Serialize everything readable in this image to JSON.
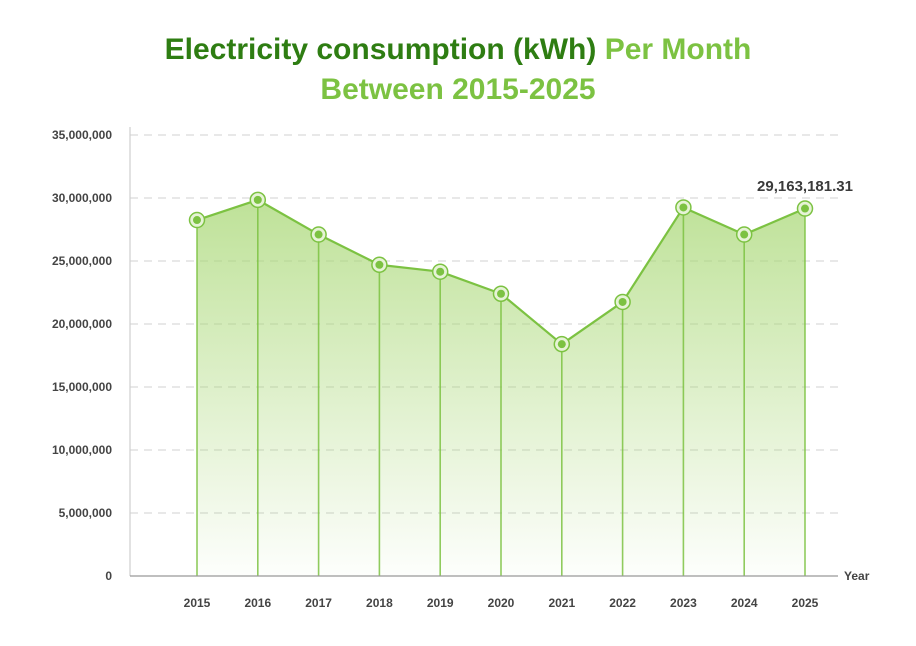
{
  "chart_data": {
    "type": "area",
    "title_part1": "Electricity consumption (kWh)",
    "title_part2": "Per Month",
    "title_line2": "Between 2015-2025",
    "xlabel": "Year",
    "ylabel": "",
    "categories": [
      "2015",
      "2016",
      "2017",
      "2018",
      "2019",
      "2020",
      "2021",
      "2022",
      "2023",
      "2024",
      "2025"
    ],
    "series": [
      {
        "name": "Electricity consumption (kWh)",
        "values": [
          28250000,
          29850000,
          27100000,
          24700000,
          24150000,
          22400000,
          18400000,
          21750000,
          29250000,
          27100000,
          29163181.31
        ]
      }
    ],
    "ylim": [
      0,
      35000000
    ],
    "yticks": [
      0,
      5000000,
      10000000,
      15000000,
      20000000,
      25000000,
      30000000,
      35000000
    ],
    "ytick_labels": [
      "0",
      "5,000,000",
      "10,000,000",
      "15,000,000",
      "20,000,000",
      "25,000,000",
      "30,000,000",
      "35,000,000"
    ],
    "annotations": [
      {
        "category": "2025",
        "text": "29,163,181.31"
      }
    ],
    "grid": "horizontal-dashed",
    "colors": {
      "line": "#7cc242",
      "fill_top": "#a9d876",
      "title_dark": "#2e7d12",
      "title_light": "#7cc242",
      "grid": "#d0d0d0",
      "axis": "#999999"
    }
  }
}
